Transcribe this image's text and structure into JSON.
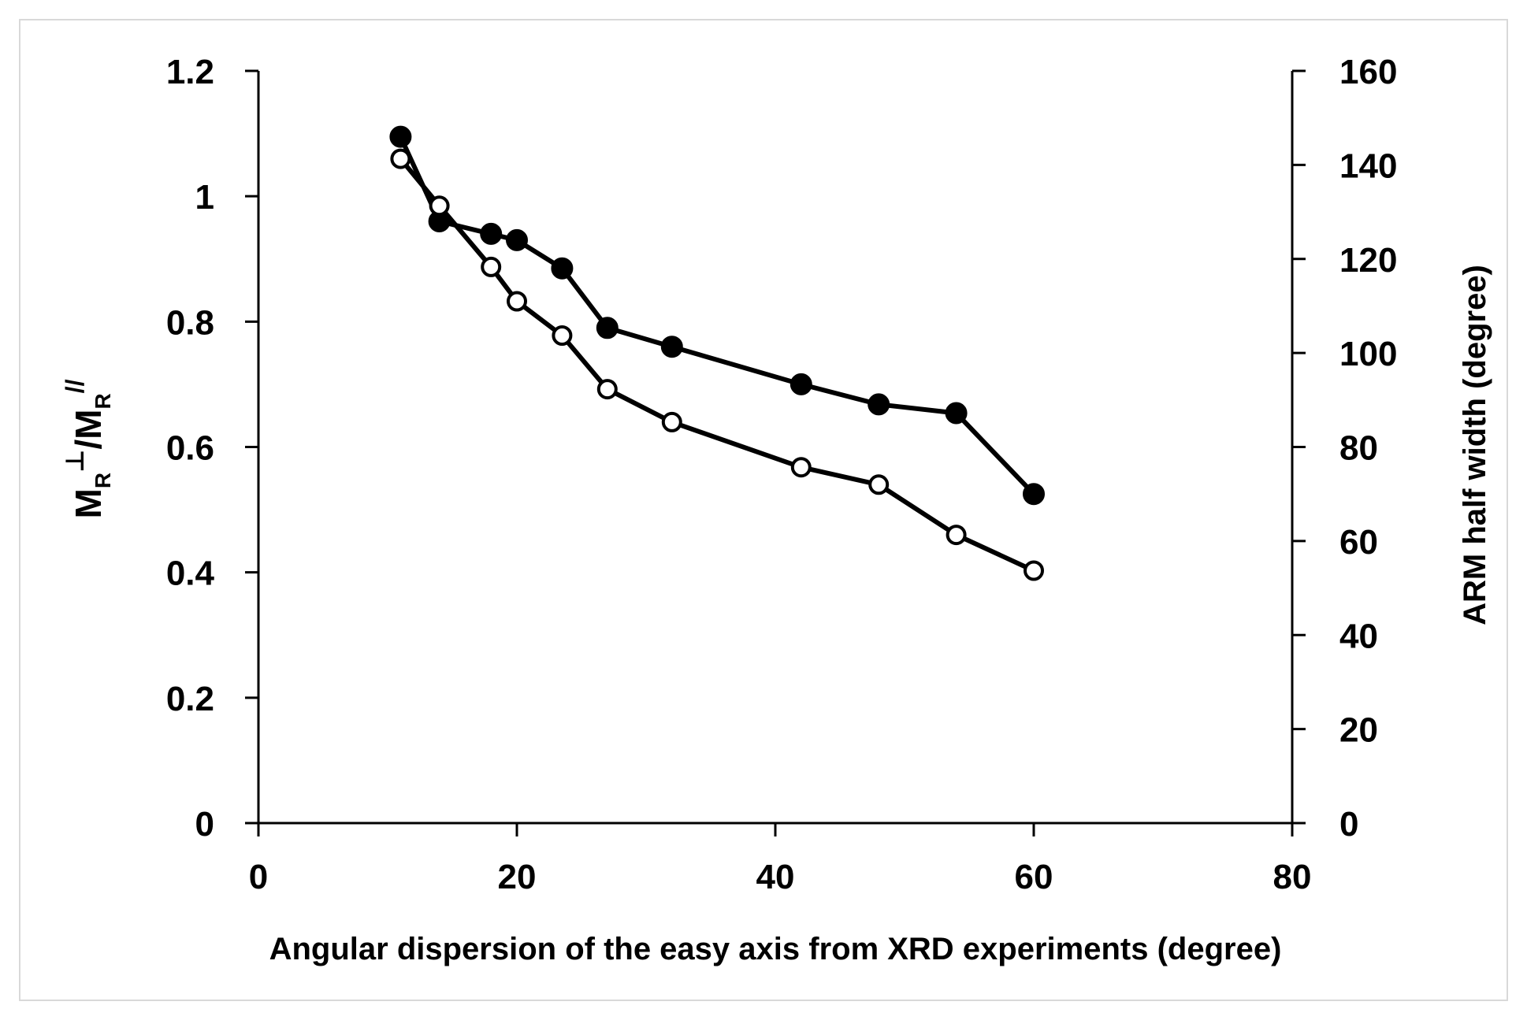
{
  "chart_data": {
    "type": "scatter",
    "title": "",
    "xlabel": "Angular dispersion of the easy axis from XRD experiments (degree)",
    "ylabel": {
      "main": "M",
      "sub1": "R",
      "sup1": "⊥",
      "slash": "/M",
      "sub2": "R",
      "sup2": "//"
    },
    "y2label": "ARM half width (degree)",
    "xlim": [
      0,
      80
    ],
    "ylim": [
      0,
      1.2
    ],
    "y2lim": [
      0,
      160
    ],
    "xticks": [
      "0",
      "20",
      "40",
      "60",
      "80"
    ],
    "yticks": [
      "0",
      "0.2",
      "0.4",
      "0.6",
      "0.8",
      "1",
      "1.2"
    ],
    "y2ticks": [
      "0",
      "20",
      "40",
      "60",
      "80",
      "100",
      "120",
      "140",
      "160"
    ],
    "grid": false,
    "series": [
      {
        "name": "MR⊥/MR//",
        "axis": "left",
        "marker": "filled-circle",
        "x": [
          11,
          14,
          18,
          20,
          23.5,
          27,
          32,
          42,
          48,
          54,
          60
        ],
        "y": [
          1.095,
          0.96,
          0.94,
          0.93,
          0.885,
          0.79,
          0.76,
          0.7,
          0.668,
          0.654,
          0.525
        ]
      },
      {
        "name": "ARM half width",
        "axis": "right",
        "marker": "open-circle",
        "x": [
          11,
          14,
          18,
          20,
          23.5,
          27,
          32,
          42,
          48,
          54,
          60
        ],
        "y": [
          141.3,
          131.3,
          118.3,
          111.0,
          103.7,
          92.3,
          85.3,
          75.7,
          72.0,
          61.3,
          53.7
        ]
      }
    ]
  }
}
